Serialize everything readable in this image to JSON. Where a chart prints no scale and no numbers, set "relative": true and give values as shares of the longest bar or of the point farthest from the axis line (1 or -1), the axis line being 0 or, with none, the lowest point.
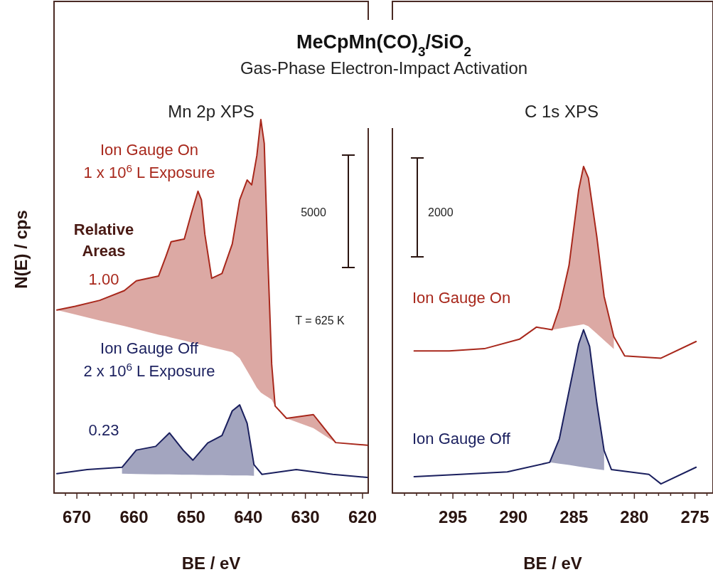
{
  "chart_data": [
    {
      "type": "line",
      "title": "MeCpMn(CO)$_{3}$/SiO$_{2}$",
      "subtitle": "Gas-Phase Electron-Impact Activation",
      "xlabel": "BE / eV",
      "ylabel": "N(E) / cps",
      "relative": true,
      "tick_labels": "x",
      "annotations": [
        "Mn 2p XPS",
        "Relative Areas",
        "1.00",
        "0.23",
        "T = 625 K",
        "5000"
      ],
      "xlim": [
        674,
        619
      ],
      "xticks": [
        {
          "value": 672,
          "label": null
        },
        670,
        {
          "value": 668,
          "label": null
        },
        {
          "value": 666,
          "label": null
        },
        {
          "value": 664,
          "label": null
        },
        {
          "value": 662,
          "label": null
        },
        660,
        {
          "value": 658,
          "label": null
        },
        {
          "value": 656,
          "label": null
        },
        {
          "value": 654,
          "label": null
        },
        {
          "value": 652,
          "label": null
        },
        650,
        {
          "value": 648,
          "label": null
        },
        {
          "value": 646,
          "label": null
        },
        {
          "value": 644,
          "label": null
        },
        {
          "value": 642,
          "label": null
        },
        640,
        {
          "value": 638,
          "label": null
        },
        {
          "value": 636,
          "label": null
        },
        {
          "value": 634,
          "label": null
        },
        {
          "value": 632,
          "label": null
        },
        630,
        {
          "value": 628,
          "label": null
        },
        {
          "value": 626,
          "label": null
        },
        {
          "value": 624,
          "label": null
        },
        {
          "value": 622,
          "label": null
        },
        620
      ],
      "series": [
        {
          "name": "Ion Gauge On\n1 x 10$^{6}$ L Exposure",
          "color": "#a8281c",
          "x": [
            673.5,
            670.3,
            666.0,
            661.7,
            659.6,
            655.7,
            654.4,
            653.5,
            651.2,
            649.9,
            648.8,
            648.2,
            647.6,
            646.4,
            644.6,
            642.8,
            641.5,
            640.2,
            639.4,
            638.5,
            637.8,
            637.2,
            636.6,
            635.9,
            635.3,
            633.3,
            628.6,
            627.4,
            624.7,
            619.2
          ],
          "values": [
            0.49,
            0.5,
            0.516,
            0.542,
            0.568,
            0.581,
            0.634,
            0.673,
            0.68,
            0.752,
            0.808,
            0.785,
            0.693,
            0.575,
            0.588,
            0.667,
            0.785,
            0.838,
            0.825,
            0.903,
            1.0,
            0.936,
            0.64,
            0.345,
            0.233,
            0.2,
            0.21,
            0.187,
            0.135,
            0.128
          ],
          "lower": [
            0.49,
            0.478,
            0.462,
            0.447,
            0.439,
            0.424,
            0.42,
            0.416,
            0.408,
            0.403,
            0.399,
            0.397,
            0.395,
            0.39,
            0.384,
            0.377,
            0.361,
            0.327,
            0.306,
            0.282,
            0.269,
            0.263,
            0.257,
            0.25,
            0.233,
            0.2,
            0.174,
            0.162,
            0.135,
            null
          ],
          "upper": [
            0.49,
            0.5,
            0.516,
            0.542,
            0.568,
            0.581,
            0.634,
            0.673,
            0.68,
            0.752,
            0.808,
            0.785,
            0.693,
            0.575,
            0.588,
            0.667,
            0.785,
            0.838,
            0.825,
            0.903,
            1.0,
            0.936,
            0.64,
            0.345,
            0.233,
            0.2,
            0.21,
            0.187,
            0.135,
            null
          ]
        },
        {
          "name": "Ion Gauge Off\n2 x 10$^{6}$ L Exposure",
          "color": "#1a1f5e",
          "x": [
            673.5,
            668.2,
            662.1,
            659.6,
            656.2,
            653.8,
            651.4,
            649.7,
            647.1,
            644.6,
            642.8,
            641.5,
            640.2,
            639.0,
            637.6,
            631.6,
            625.2,
            619.2
          ],
          "values": [
            0.052,
            0.063,
            0.069,
            0.115,
            0.125,
            0.161,
            0.115,
            0.088,
            0.134,
            0.154,
            0.22,
            0.236,
            0.187,
            0.076,
            0.05,
            0.063,
            0.05,
            0.042
          ],
          "lower": [
            null,
            null,
            0.052,
            0.051,
            0.05,
            0.05,
            0.049,
            0.049,
            0.048,
            0.048,
            0.047,
            0.047,
            0.047,
            0.046,
            null,
            null,
            null,
            null
          ],
          "upper": [
            null,
            null,
            0.069,
            0.115,
            0.125,
            0.161,
            0.115,
            0.088,
            0.134,
            0.154,
            0.22,
            0.236,
            0.187,
            0.076,
            null,
            null,
            null,
            null
          ]
        }
      ]
    },
    {
      "type": "line",
      "xlabel": "BE / eV",
      "relative": true,
      "tick_labels": "x",
      "annotations": [
        "C 1s XPS",
        "2000"
      ],
      "xlim": [
        300,
        273.5
      ],
      "xticks": [
        {
          "value": 299,
          "label": null
        },
        {
          "value": 298,
          "label": null
        },
        {
          "value": 297,
          "label": null
        },
        {
          "value": 296,
          "label": null
        },
        295,
        {
          "value": 294,
          "label": null
        },
        {
          "value": 293,
          "label": null
        },
        {
          "value": 292,
          "label": null
        },
        {
          "value": 291,
          "label": null
        },
        290,
        {
          "value": 289,
          "label": null
        },
        {
          "value": 288,
          "label": null
        },
        {
          "value": 287,
          "label": null
        },
        {
          "value": 286,
          "label": null
        },
        285,
        {
          "value": 284,
          "label": null
        },
        {
          "value": 283,
          "label": null
        },
        {
          "value": 282,
          "label": null
        },
        {
          "value": 281,
          "label": null
        },
        280,
        {
          "value": 279,
          "label": null
        },
        {
          "value": 278,
          "label": null
        },
        {
          "value": 277,
          "label": null
        },
        {
          "value": 276,
          "label": null
        },
        275,
        {
          "value": 274,
          "label": null
        }
      ],
      "series": [
        {
          "name": "Ion Gauge On",
          "color": "#a8281c",
          "x": [
            298.2,
            295.3,
            292.4,
            289.5,
            288.1,
            286.8,
            286.2,
            285.4,
            284.6,
            284.2,
            283.8,
            283.1,
            282.5,
            281.7,
            280.8,
            277.8,
            274.9
          ],
          "values": [
            0.435,
            0.435,
            0.442,
            0.471,
            0.508,
            0.5,
            0.566,
            0.697,
            0.929,
            1.0,
            0.965,
            0.784,
            0.602,
            0.479,
            0.42,
            0.413,
            0.464
          ],
          "lower": [
            null,
            null,
            null,
            null,
            null,
            0.5,
            0.504,
            0.509,
            0.514,
            0.517,
            0.511,
            0.488,
            0.468,
            0.441,
            null,
            null,
            null
          ],
          "upper": [
            null,
            null,
            null,
            null,
            null,
            0.5,
            0.566,
            0.697,
            0.929,
            1.0,
            0.965,
            0.784,
            0.602,
            0.479,
            null,
            null,
            null
          ]
        },
        {
          "name": "Ion Gauge Off",
          "color": "#1a1f5e",
          "x": [
            298.2,
            294.4,
            290.5,
            287.0,
            286.2,
            285.4,
            284.6,
            284.2,
            283.7,
            283.1,
            282.5,
            281.9,
            278.8,
            277.8,
            274.9
          ],
          "values": [
            0.05,
            0.057,
            0.065,
            0.094,
            0.166,
            0.312,
            0.457,
            0.5,
            0.449,
            0.275,
            0.13,
            0.072,
            0.057,
            0.028,
            0.079
          ],
          "lower": [
            null,
            null,
            null,
            0.094,
            0.09,
            0.086,
            0.081,
            0.079,
            0.076,
            0.073,
            0.07,
            null,
            null,
            null,
            null
          ],
          "upper": [
            null,
            null,
            null,
            0.094,
            0.166,
            0.312,
            0.457,
            0.5,
            0.449,
            0.275,
            0.13,
            null,
            null,
            null,
            null
          ]
        }
      ]
    }
  ]
}
